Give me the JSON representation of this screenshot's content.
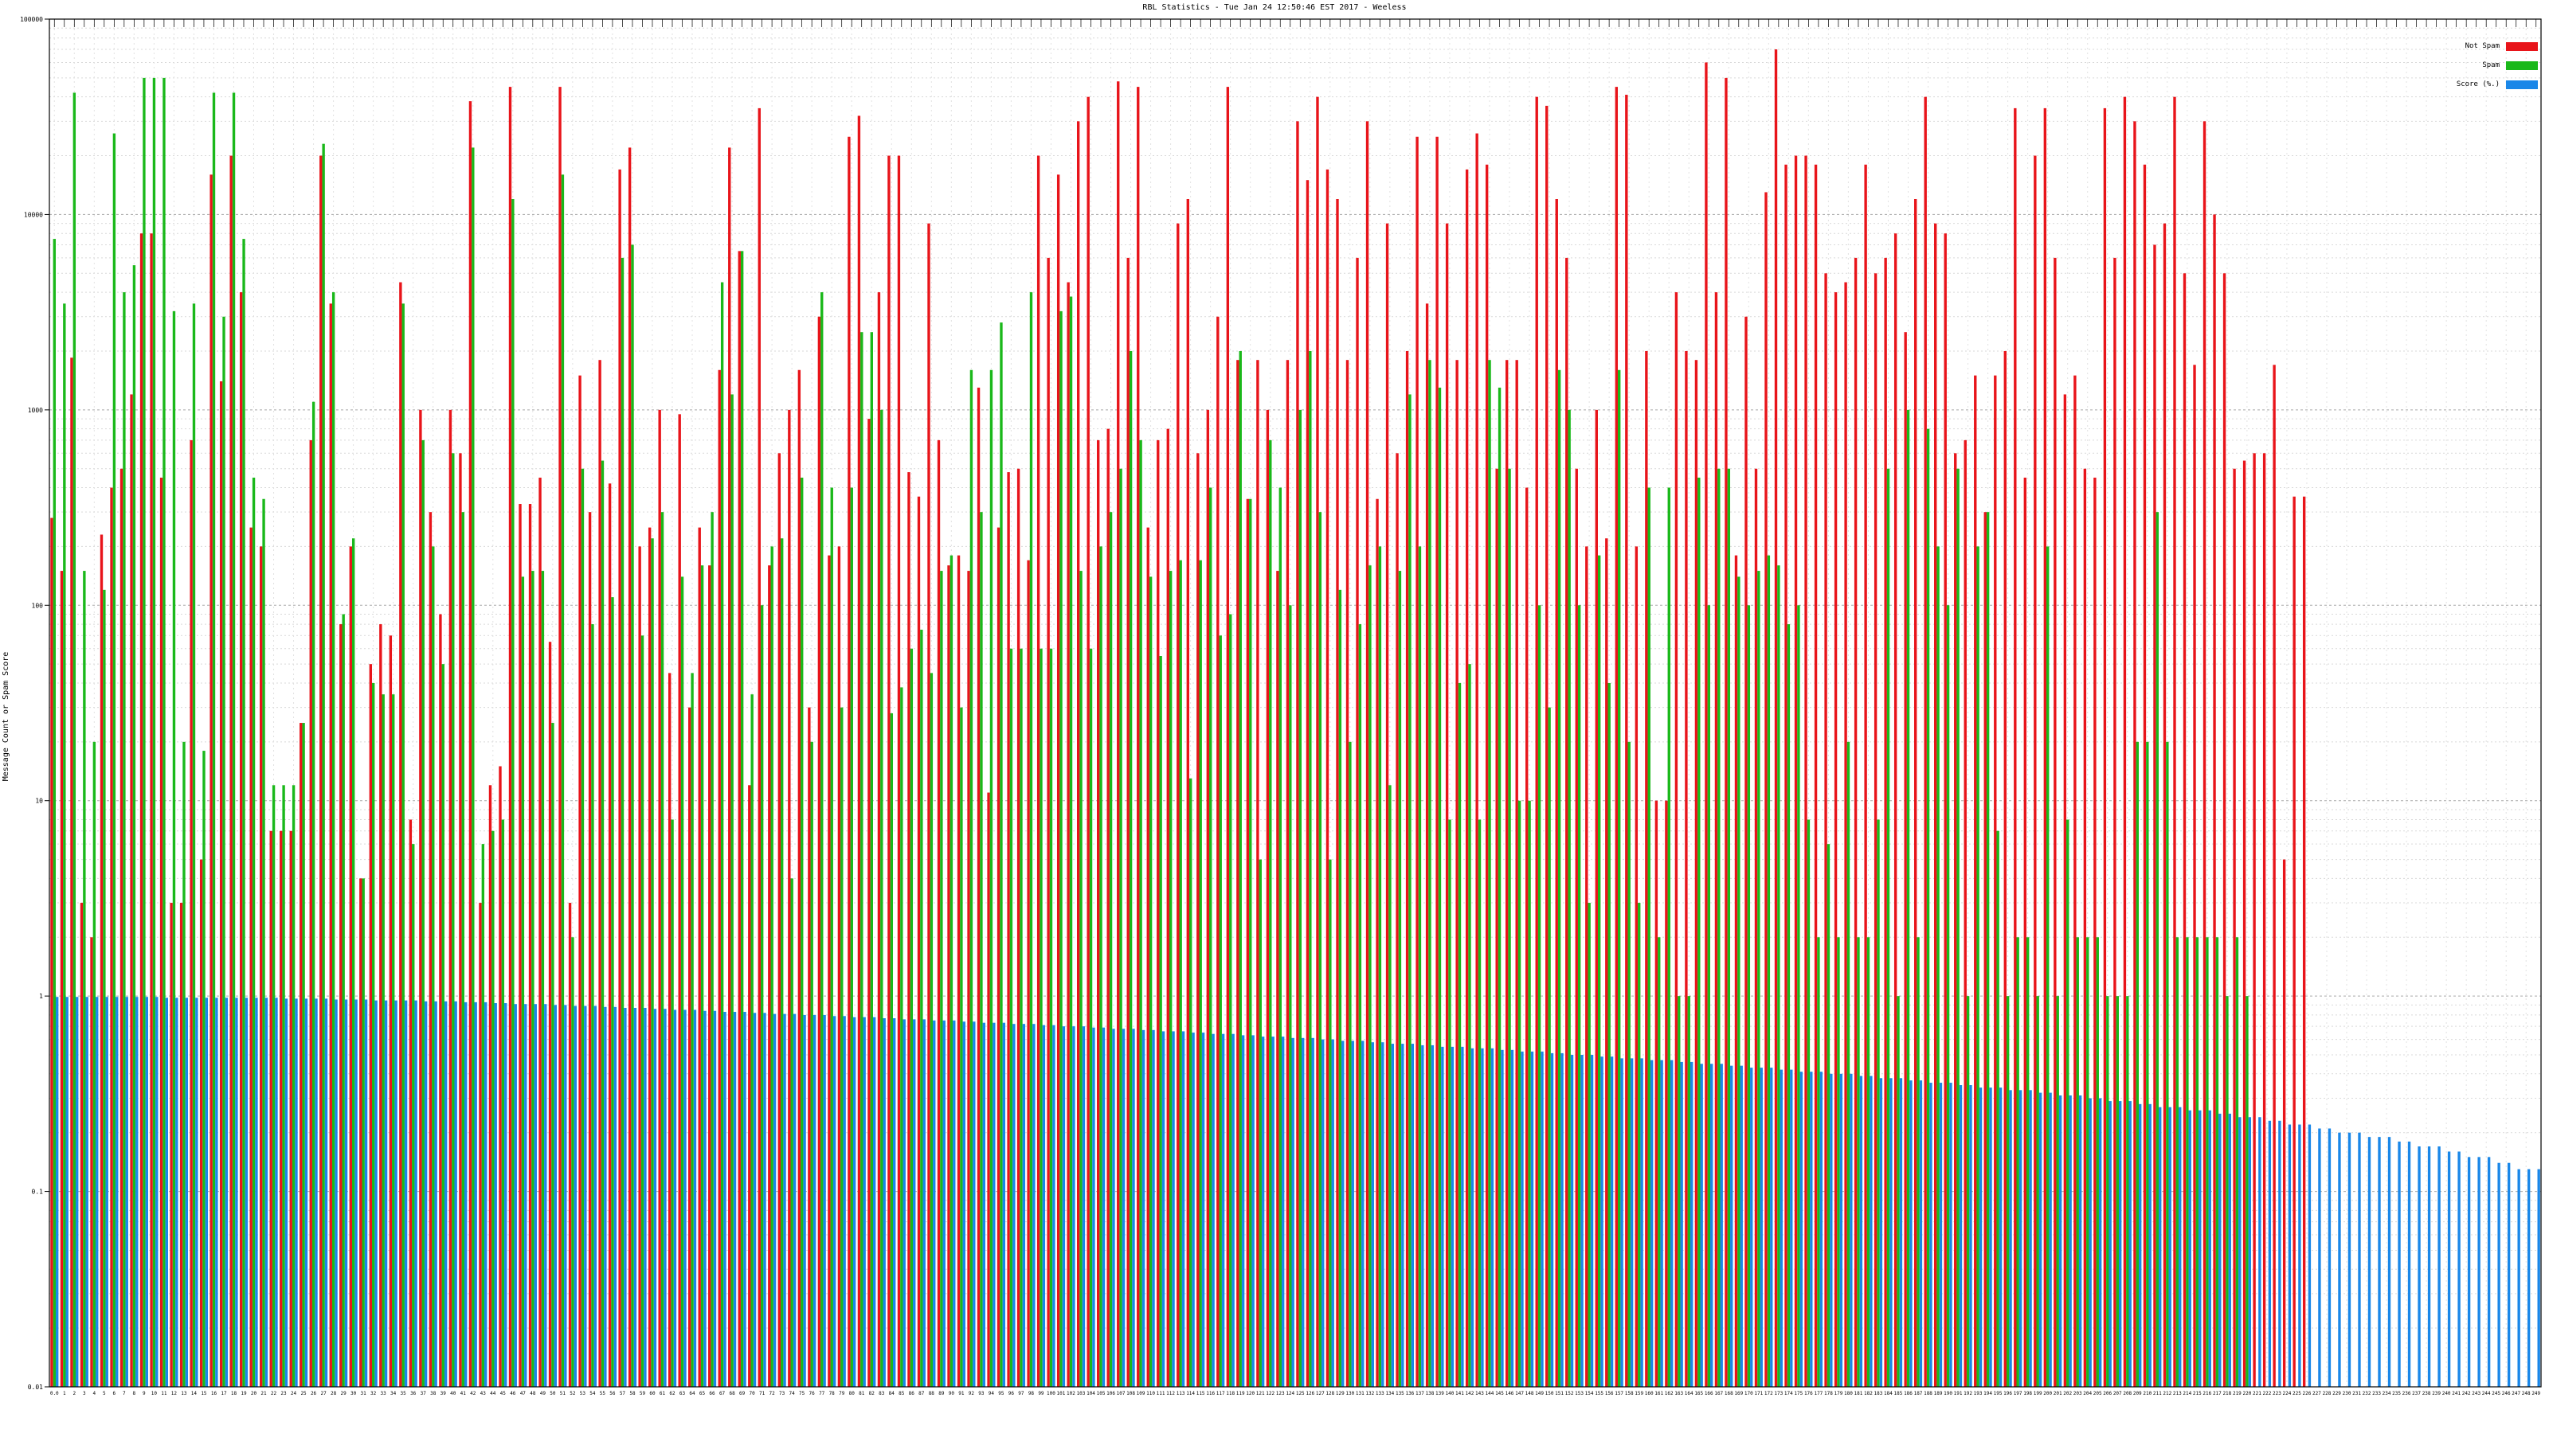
{
  "chart_data": {
    "type": "bar",
    "title": "RBL Statistics - Tue Jan 24 12:50:46 EST 2017 - Weeless",
    "xlabel": "",
    "ylabel": "Message Count or Spam Score",
    "yscale": "log",
    "ylim": [
      0.01,
      100000
    ],
    "yticks": [
      {
        "value": 0.01,
        "label": "0.01"
      },
      {
        "value": 0.1,
        "label": "0.1"
      },
      {
        "value": 1,
        "label": "1"
      },
      {
        "value": 10,
        "label": "10"
      },
      {
        "value": 100,
        "label": "100"
      },
      {
        "value": 1000,
        "label": "1000"
      },
      {
        "value": 10000,
        "label": "10000"
      },
      {
        "value": 100000,
        "label": "100000"
      }
    ],
    "grid": true,
    "legend_position": "top-right",
    "colors": {
      "not_spam": "#e8141a",
      "spam": "#1ab81a",
      "score": "#1a87e8"
    },
    "series": [
      {
        "name": "Not Spam",
        "color": "#e8141a"
      },
      {
        "name": "Spam",
        "color": "#1ab81a"
      },
      {
        "name": "Score (%.)",
        "color": "#1a87e8"
      }
    ],
    "num_categories": 250,
    "not_spam_values": [
      280,
      150,
      1850,
      3,
      2,
      230,
      400,
      500,
      1200,
      8000,
      8000,
      450,
      3,
      3,
      700,
      5,
      16000,
      1400,
      20000,
      4000,
      250,
      200,
      7,
      7,
      7,
      25,
      700,
      20000,
      3500,
      80,
      200,
      4,
      50,
      80,
      70,
      4500,
      8,
      1000,
      300,
      90,
      1000,
      600,
      38000,
      3,
      12,
      15,
      45000,
      330,
      330,
      450,
      65,
      45000,
      3,
      1500,
      300,
      1800,
      420,
      17000,
      22000,
      200,
      250,
      1000,
      45,
      950,
      30,
      250,
      160,
      1600,
      22000,
      6500,
      12,
      35000,
      160,
      600,
      1000,
      1600,
      30,
      3000,
      180,
      200,
      25000,
      32000,
      900,
      4000,
      20000,
      20000,
      480,
      360,
      9000,
      700,
      160,
      180,
      150,
      1300,
      11,
      250,
      480,
      500,
      170,
      20000,
      6000,
      16000,
      4500,
      30000,
      40000,
      700,
      800,
      48000,
      6000,
      45000,
      250,
      700,
      800,
      9000,
      12000,
      600,
      1000,
      3000,
      45000,
      1800,
      350,
      1800,
      1000,
      150,
      1800,
      30000,
      15000,
      40000,
      17000,
      12000,
      1800,
      6000,
      30000,
      350,
      9000,
      600,
      2000,
      25000,
      3500,
      25000,
      9000,
      1800,
      17000,
      26000,
      18000,
      500,
      1800,
      1800,
      400,
      40000,
      36000,
      12000,
      6000,
      500,
      200,
      1000,
      220,
      45000,
      41000,
      200,
      2000,
      10,
      10,
      4000,
      2000,
      1800,
      60000,
      4000,
      50000,
      180,
      3000,
      500,
      13000,
      70000,
      18000,
      20000,
      20000,
      18000,
      5000,
      4000,
      4500,
      6000,
      18000,
      5000,
      6000,
      8000,
      2500,
      12000,
      40000,
      9000,
      8000,
      600,
      700,
      1500,
      300,
      1500,
      2000,
      35000,
      450,
      20000,
      35000,
      6000,
      1200,
      1500,
      500,
      450,
      35000,
      6000,
      40000,
      30000,
      18000,
      7000,
      9000,
      40000,
      5000,
      1700,
      30000,
      10000,
      5000,
      500,
      550,
      600,
      600,
      1700,
      5,
      360,
      360
    ],
    "spam_values": [
      7500,
      3500,
      42000,
      150,
      20,
      120,
      26000,
      4000,
      5500,
      50000,
      50000,
      50000,
      3200,
      20,
      3500,
      18,
      42000,
      3000,
      42000,
      7500,
      450,
      350,
      12,
      12,
      12,
      25,
      1100,
      23000,
      4000,
      90,
      220,
      4,
      40,
      35,
      35,
      3500,
      6,
      700,
      200,
      50,
      600,
      300,
      22000,
      6,
      7,
      8,
      12000,
      140,
      150,
      150,
      25,
      16000,
      2,
      500,
      80,
      550,
      110,
      6000,
      7000,
      70,
      220,
      300,
      8,
      140,
      45,
      160,
      300,
      4500,
      1200,
      6500,
      35,
      100,
      200,
      220,
      4,
      450,
      20,
      4000,
      400,
      30,
      400,
      2500,
      2500,
      1000,
      28,
      38,
      60,
      75,
      45,
      150,
      180,
      30,
      1600,
      300,
      1600,
      2800,
      60,
      60,
      4000,
      60,
      60,
      3200,
      3800,
      150,
      60,
      200,
      300,
      500,
      2000,
      700,
      140,
      55,
      150,
      170,
      13,
      170,
      400,
      70,
      90,
      2000,
      350,
      5,
      700,
      400,
      100,
      1000,
      2000,
      300,
      5,
      120,
      20,
      80,
      160,
      200,
      12,
      150,
      1200,
      200,
      1800,
      1300,
      8,
      40,
      50,
      8,
      1800,
      1300,
      500,
      10,
      10,
      100,
      30,
      1600,
      1000,
      100,
      3,
      180,
      40,
      1600,
      20,
      3,
      400,
      2,
      400,
      1,
      1,
      450,
      100,
      500,
      500,
      140,
      100,
      150,
      180,
      160,
      80,
      100,
      8,
      2,
      6,
      2,
      20,
      2,
      2,
      8,
      500,
      1,
      1000,
      2,
      800,
      200,
      100,
      500,
      1,
      200,
      300,
      7,
      1,
      2,
      2,
      1,
      200,
      1,
      8,
      2,
      2,
      2,
      1,
      1,
      1,
      20,
      20,
      300,
      20,
      2,
      2,
      2,
      2,
      2,
      1,
      2,
      1
    ],
    "score_values": [
      0.99,
      0.99,
      0.99,
      0.99,
      0.99,
      0.99,
      0.99,
      0.99,
      0.99,
      0.99,
      0.99,
      0.98,
      0.98,
      0.98,
      0.98,
      0.98,
      0.98,
      0.98,
      0.98,
      0.98,
      0.98,
      0.98,
      0.98,
      0.97,
      0.97,
      0.97,
      0.97,
      0.97,
      0.96,
      0.96,
      0.96,
      0.96,
      0.95,
      0.95,
      0.95,
      0.95,
      0.95,
      0.94,
      0.94,
      0.94,
      0.94,
      0.93,
      0.93,
      0.93,
      0.92,
      0.92,
      0.91,
      0.91,
      0.91,
      0.91,
      0.9,
      0.9,
      0.89,
      0.89,
      0.89,
      0.88,
      0.88,
      0.87,
      0.87,
      0.87,
      0.86,
      0.86,
      0.85,
      0.85,
      0.85,
      0.84,
      0.84,
      0.83,
      0.83,
      0.83,
      0.82,
      0.82,
      0.81,
      0.81,
      0.81,
      0.8,
      0.8,
      0.8,
      0.79,
      0.79,
      0.78,
      0.78,
      0.78,
      0.77,
      0.77,
      0.76,
      0.76,
      0.76,
      0.75,
      0.75,
      0.75,
      0.74,
      0.74,
      0.73,
      0.73,
      0.73,
      0.72,
      0.72,
      0.72,
      0.71,
      0.71,
      0.7,
      0.7,
      0.7,
      0.69,
      0.69,
      0.68,
      0.68,
      0.68,
      0.67,
      0.67,
      0.66,
      0.66,
      0.66,
      0.65,
      0.65,
      0.64,
      0.64,
      0.64,
      0.63,
      0.63,
      0.62,
      0.62,
      0.62,
      0.61,
      0.61,
      0.61,
      0.6,
      0.6,
      0.59,
      0.59,
      0.59,
      0.58,
      0.58,
      0.57,
      0.57,
      0.57,
      0.56,
      0.56,
      0.55,
      0.55,
      0.55,
      0.54,
      0.54,
      0.54,
      0.53,
      0.53,
      0.52,
      0.52,
      0.52,
      0.51,
      0.51,
      0.5,
      0.5,
      0.5,
      0.49,
      0.49,
      0.48,
      0.48,
      0.48,
      0.47,
      0.47,
      0.47,
      0.46,
      0.46,
      0.45,
      0.45,
      0.45,
      0.44,
      0.44,
      0.43,
      0.43,
      0.43,
      0.42,
      0.42,
      0.41,
      0.41,
      0.41,
      0.4,
      0.4,
      0.4,
      0.39,
      0.39,
      0.38,
      0.38,
      0.38,
      0.37,
      0.37,
      0.36,
      0.36,
      0.36,
      0.35,
      0.35,
      0.34,
      0.34,
      0.34,
      0.33,
      0.33,
      0.33,
      0.32,
      0.32,
      0.31,
      0.31,
      0.31,
      0.3,
      0.3,
      0.29,
      0.29,
      0.29,
      0.28,
      0.28,
      0.27,
      0.27,
      0.27,
      0.26,
      0.26,
      0.26,
      0.25,
      0.25,
      0.24,
      0.24,
      0.24,
      0.23,
      0.23,
      0.22,
      0.22,
      0.22,
      0.21,
      0.21,
      0.2,
      0.2,
      0.2,
      0.19,
      0.19,
      0.19,
      0.18,
      0.18,
      0.17,
      0.17,
      0.17,
      0.16,
      0.16,
      0.15,
      0.15,
      0.15,
      0.14,
      0.14,
      0.13,
      0.13,
      0.13,
      0.12,
      0.12
    ],
    "x_tick_labels": [
      "0.0",
      "1",
      "2",
      "3",
      "4",
      "5",
      "6",
      "7",
      "8",
      "9",
      "10",
      "11",
      "12",
      "13",
      "14",
      "15",
      "16",
      "17",
      "18",
      "19",
      "20",
      "21",
      "22",
      "23",
      "24",
      "25",
      "26",
      "27",
      "28",
      "29",
      "30",
      "31",
      "32",
      "33",
      "34",
      "35",
      "36",
      "37",
      "38",
      "39",
      "40",
      "41",
      "42",
      "43",
      "44",
      "45",
      "46",
      "47",
      "48",
      "49",
      "50",
      "51",
      "52",
      "53",
      "54",
      "55",
      "56",
      "57",
      "58",
      "59",
      "60",
      "61",
      "62",
      "63",
      "64",
      "65",
      "66",
      "67",
      "68",
      "69",
      "70",
      "71",
      "72",
      "73",
      "74",
      "75",
      "76",
      "77",
      "78",
      "79",
      "80",
      "81",
      "82",
      "83",
      "84",
      "85",
      "86",
      "87",
      "88",
      "89",
      "90",
      "91",
      "92",
      "93",
      "94",
      "95",
      "96",
      "97",
      "98",
      "99",
      "100",
      "101",
      "102",
      "103",
      "104",
      "105",
      "106",
      "107",
      "108",
      "109",
      "110",
      "111",
      "112",
      "113",
      "114",
      "115",
      "116",
      "117",
      "118",
      "119",
      "120",
      "121",
      "122",
      "123",
      "124",
      "125",
      "126",
      "127",
      "128",
      "129",
      "130",
      "131",
      "132",
      "133",
      "134",
      "135",
      "136",
      "137",
      "138",
      "139",
      "140",
      "141",
      "142",
      "143",
      "144",
      "145",
      "146",
      "147",
      "148",
      "149",
      "150",
      "151",
      "152",
      "153",
      "154",
      "155",
      "156",
      "157",
      "158",
      "159",
      "160",
      "161",
      "162",
      "163",
      "164",
      "165",
      "166",
      "167",
      "168",
      "169",
      "170",
      "171",
      "172",
      "173",
      "174",
      "175",
      "176",
      "177",
      "178",
      "179",
      "180",
      "181",
      "182",
      "183",
      "184",
      "185",
      "186",
      "187",
      "188",
      "189",
      "190",
      "191",
      "192",
      "193",
      "194",
      "195",
      "196",
      "197",
      "198",
      "199",
      "200",
      "201",
      "202",
      "203",
      "204",
      "205",
      "206",
      "207",
      "208",
      "209",
      "210",
      "211",
      "212",
      "213",
      "214",
      "215",
      "216",
      "217",
      "218",
      "219",
      "220",
      "221",
      "222",
      "223",
      "224",
      "225",
      "226",
      "227",
      "228",
      "229",
      "230",
      "231",
      "232",
      "233",
      "234",
      "235",
      "236",
      "237",
      "238",
      "239",
      "240",
      "241",
      "242",
      "243",
      "244",
      "245",
      "246",
      "247",
      "248",
      "249"
    ]
  }
}
